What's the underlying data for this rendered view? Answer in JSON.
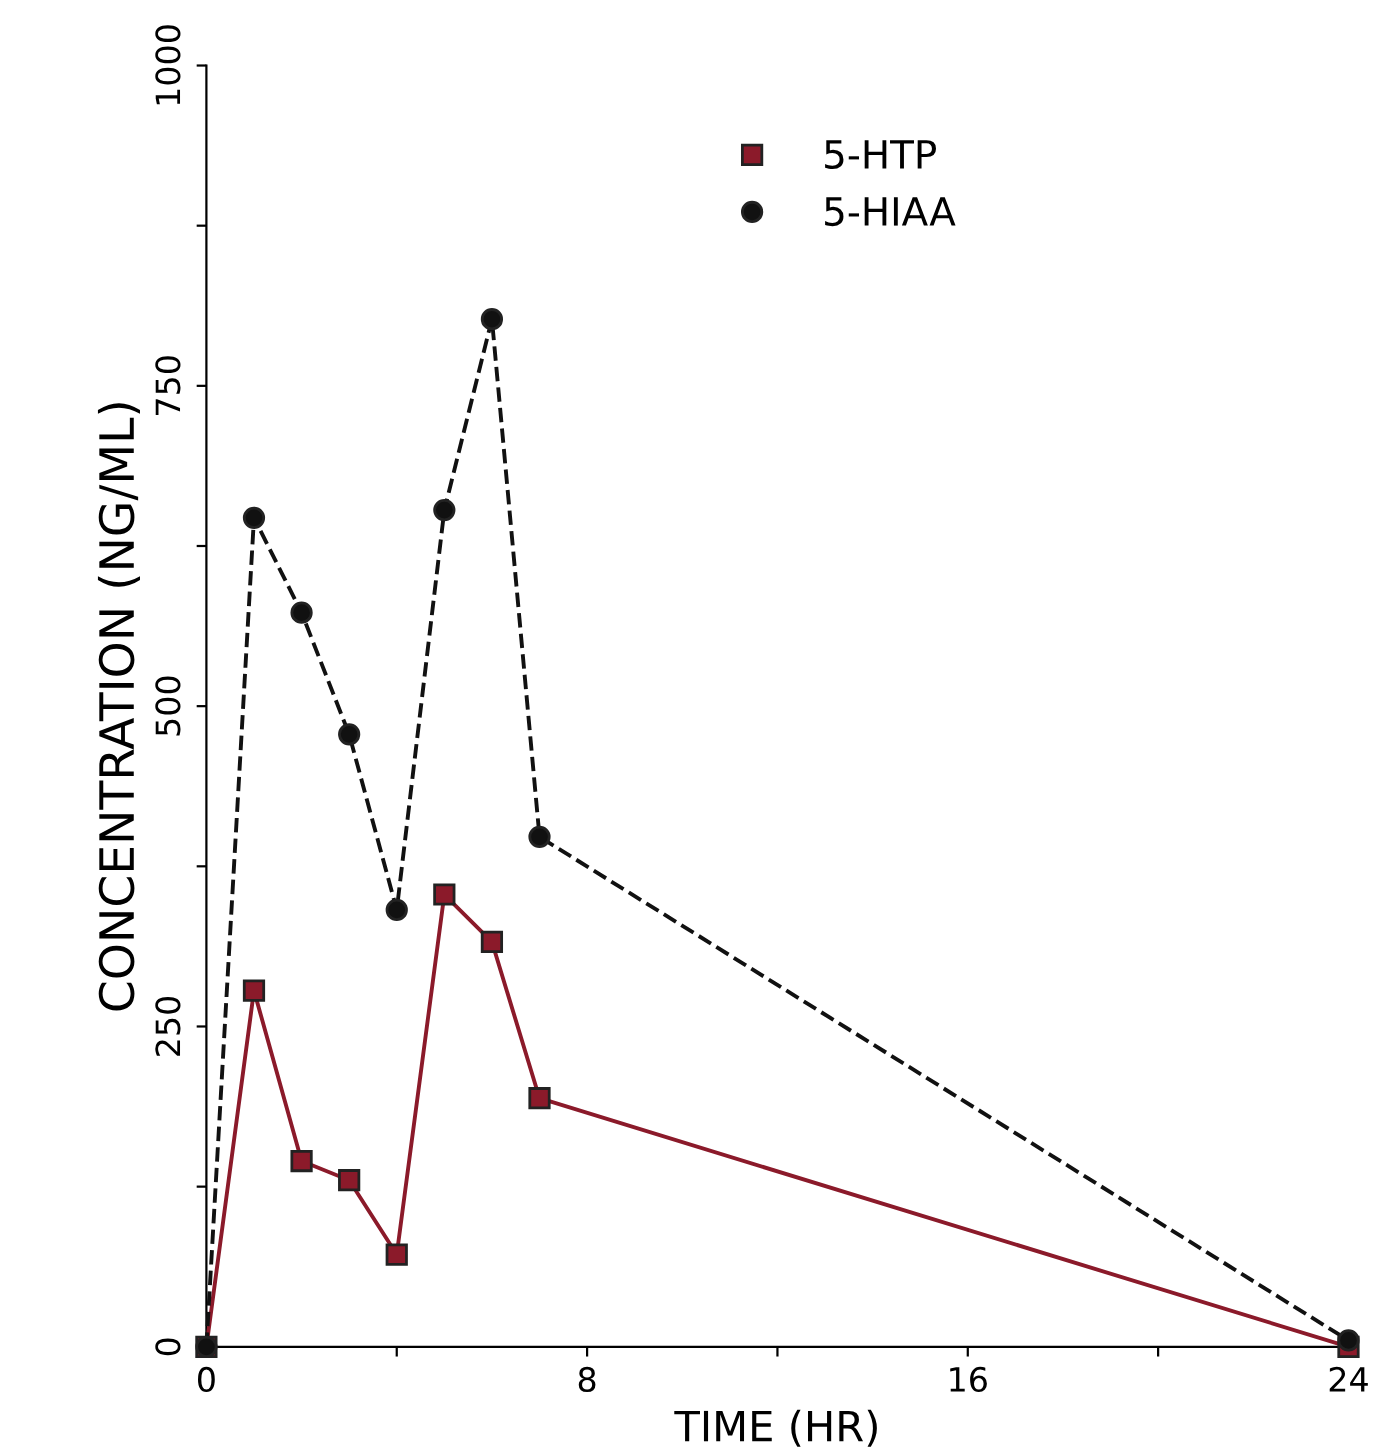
{
  "chart_data": {
    "type": "line",
    "xlabel": "TIME (HR)",
    "ylabel": "CONCENTRATION (NG/ML)",
    "xlim": [
      0,
      24
    ],
    "xticks": [
      0,
      {
        "value": 4,
        "label": null
      },
      8,
      {
        "value": 12,
        "label": null
      },
      16,
      {
        "value": 20,
        "label": null
      },
      24
    ],
    "ylim": [
      0,
      1000
    ],
    "yticks": [
      0,
      {
        "value": 125,
        "label": null
      },
      250,
      {
        "value": 375,
        "label": null
      },
      500,
      {
        "value": 625,
        "label": null
      },
      750,
      {
        "value": 875,
        "label": null
      },
      1000
    ],
    "legend": "top",
    "grid": false,
    "series": [
      {
        "name": "5-HTP",
        "color": "#8b1a2a",
        "marker": "square",
        "line_style": "solid",
        "x": [
          0,
          1,
          2,
          3,
          4,
          5,
          6,
          7,
          24
        ],
        "values": [
          0,
          278,
          145,
          130,
          72,
          353,
          316,
          194,
          0
        ]
      },
      {
        "name": "5-HIAA",
        "color": "#111111",
        "marker": "circle",
        "line_style": "dashed",
        "x": [
          0,
          1,
          2,
          3,
          4,
          5,
          6,
          7,
          24
        ],
        "values": [
          0,
          647,
          573,
          478,
          341,
          653,
          802,
          398,
          5
        ]
      }
    ]
  }
}
